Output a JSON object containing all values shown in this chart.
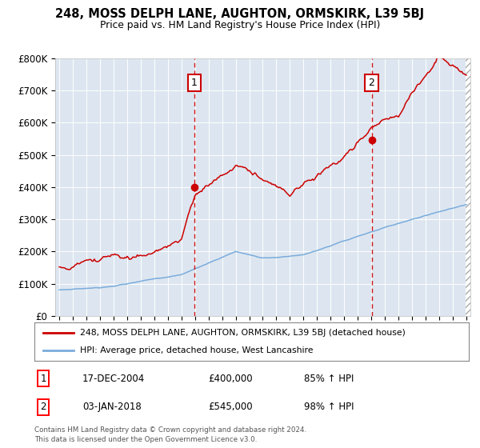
{
  "title": "248, MOSS DELPH LANE, AUGHTON, ORMSKIRK, L39 5BJ",
  "subtitle": "Price paid vs. HM Land Registry's House Price Index (HPI)",
  "bg_color": "#dde6f0",
  "fig_color": "#ffffff",
  "hpi_color": "#7aacdc",
  "price_color": "#cc0000",
  "marker1_x": 2004.96,
  "marker1_y": 400000,
  "marker2_x": 2018.02,
  "marker2_y": 545000,
  "legend_line1": "248, MOSS DELPH LANE, AUGHTON, ORMSKIRK, L39 5BJ (detached house)",
  "legend_line2": "HPI: Average price, detached house, West Lancashire",
  "ann1_date": "17-DEC-2004",
  "ann1_price": "£400,000",
  "ann1_pct": "85% ↑ HPI",
  "ann2_date": "03-JAN-2018",
  "ann2_price": "£545,000",
  "ann2_pct": "98% ↑ HPI",
  "footer": "Contains HM Land Registry data © Crown copyright and database right 2024.\nThis data is licensed under the Open Government Licence v3.0.",
  "ylim": [
    0,
    800000
  ],
  "xlim_left": 1994.7,
  "xlim_right": 2025.3,
  "ytick_labels": [
    "£0",
    "£100K",
    "£200K",
    "£300K",
    "£400K",
    "£500K",
    "£600K",
    "£700K",
    "£800K"
  ]
}
